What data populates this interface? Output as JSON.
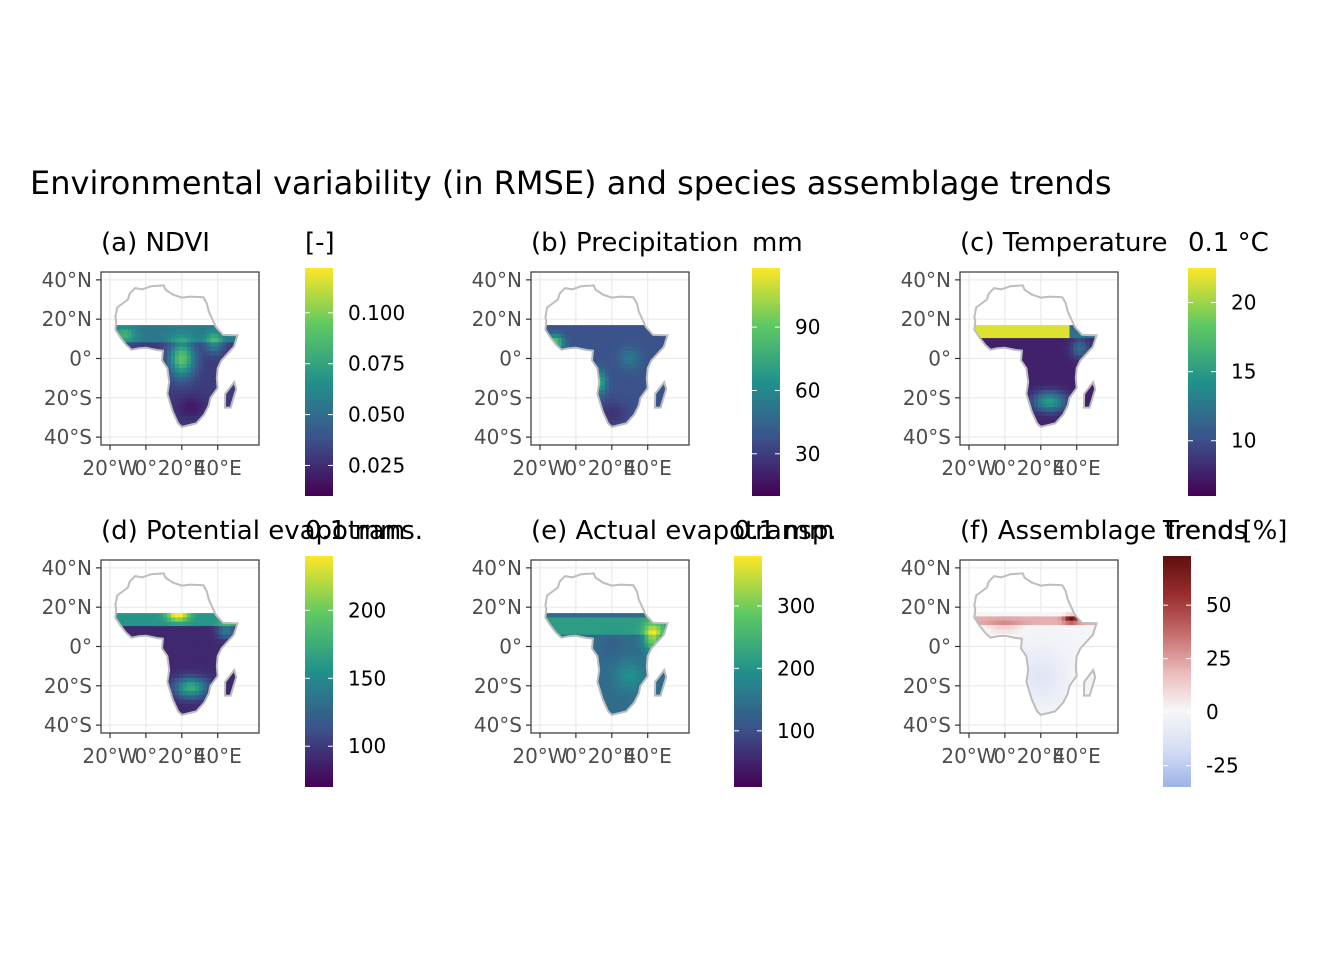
{
  "figure_title": "Environmental variability (in RMSE) and species assemblage trends",
  "colors": {
    "viridis": [
      "#440154",
      "#3b528b",
      "#21918c",
      "#5ec962",
      "#fde725"
    ],
    "trend": [
      "#9db4e8",
      "#d6def6",
      "#f7f7f7",
      "#ebb8b8",
      "#c46b6b",
      "#9a2d2d",
      "#5e0f0f"
    ],
    "land_outline": "#bdbdbd",
    "grid": "#ebebeb",
    "panel_border": "#333333"
  },
  "chart_data": [
    {
      "type": "heatmap",
      "panel": "(a) NDVI",
      "title": "(a) NDVI",
      "legend_title": "[-]",
      "lon_ticks": [
        "20°W",
        "0°",
        "20°E",
        "40°E"
      ],
      "lat_ticks": [
        "40°N",
        "20°N",
        "0°",
        "20°S",
        "40°S"
      ],
      "scale": "viridis",
      "range": [
        0.01,
        0.122
      ],
      "legend_ticks": [
        0.025,
        0.05,
        0.075,
        0.1
      ],
      "legend_labels": [
        "0.025",
        "0.050",
        "0.075",
        "0.100"
      ]
    },
    {
      "type": "heatmap",
      "panel": "(b) Precipitation",
      "title": "(b) Precipitation",
      "legend_title": "mm",
      "lon_ticks": [
        "20°W",
        "0°",
        "20°E",
        "40°E"
      ],
      "lat_ticks": [
        "40°N",
        "20°N",
        "0°",
        "20°S",
        "40°S"
      ],
      "scale": "viridis",
      "range": [
        10,
        118
      ],
      "legend_ticks": [
        30,
        60,
        90
      ],
      "legend_labels": [
        "30",
        "60",
        "90"
      ]
    },
    {
      "type": "heatmap",
      "panel": "(c) Temperature",
      "title": "(c) Temperature",
      "legend_title": "0.1 °C",
      "lon_ticks": [
        "20°W",
        "0°",
        "20°E",
        "40°E"
      ],
      "lat_ticks": [
        "40°N",
        "20°N",
        "0°",
        "20°S",
        "40°S"
      ],
      "scale": "viridis",
      "range": [
        6,
        22.5
      ],
      "legend_ticks": [
        10,
        15,
        20
      ],
      "legend_labels": [
        "10",
        "15",
        "20"
      ]
    },
    {
      "type": "heatmap",
      "panel": "(d) Potential evapotrans.",
      "title": "(d) Potential evapotrans.",
      "legend_title": "0.1 mm",
      "lon_ticks": [
        "20°W",
        "0°",
        "20°E",
        "40°E"
      ],
      "lat_ticks": [
        "40°N",
        "20°N",
        "0°",
        "20°S",
        "40°S"
      ],
      "scale": "viridis",
      "range": [
        70,
        240
      ],
      "legend_ticks": [
        100,
        150,
        200
      ],
      "legend_labels": [
        "100",
        "150",
        "200"
      ]
    },
    {
      "type": "heatmap",
      "panel": "(e) Actual evapotransp.",
      "title": "(e) Actual evapotransp.",
      "legend_title": "0.1 mm",
      "lon_ticks": [
        "20°W",
        "0°",
        "20°E",
        "40°E"
      ],
      "lat_ticks": [
        "40°N",
        "20°N",
        "0°",
        "20°S",
        "40°S"
      ],
      "scale": "viridis",
      "range": [
        10,
        380
      ],
      "legend_ticks": [
        100,
        200,
        300
      ],
      "legend_labels": [
        "100",
        "200",
        "300"
      ]
    },
    {
      "type": "heatmap",
      "panel": "(f) Assemblage trends",
      "title": "(f) Assemblage trends",
      "legend_title": "Trend [%]",
      "lon_ticks": [
        "20°W",
        "0°",
        "20°E",
        "40°E"
      ],
      "lat_ticks": [
        "40°N",
        "20°N",
        "0°",
        "20°S",
        "40°S"
      ],
      "scale": "trend",
      "range": [
        -35,
        73
      ],
      "legend_ticks": [
        -25,
        0,
        25,
        50
      ],
      "legend_labels": [
        "-25",
        "0",
        "25",
        "50"
      ]
    }
  ]
}
